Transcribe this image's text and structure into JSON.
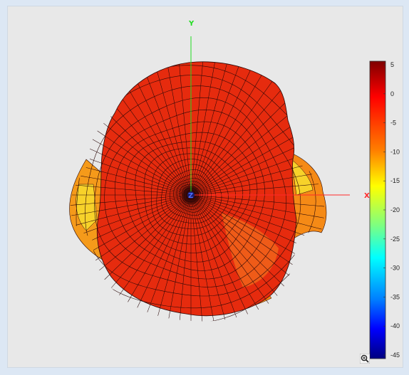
{
  "viewer": {
    "axes": {
      "x_label": "X",
      "y_label": "Y",
      "z_label": "Z",
      "x_color": "#ff2a2a",
      "y_color": "#22dd22",
      "z_color": "#2a3cff"
    },
    "colorbar": {
      "ticks": [
        "5",
        "0",
        "-5",
        "-10",
        "-15",
        "-20",
        "-25",
        "-30",
        "-35",
        "-40",
        "-45"
      ],
      "max": 5,
      "min": -45
    },
    "surface_colors": {
      "main": "#e62b0e",
      "orange": "#f57a12",
      "yellow": "#f7c81e",
      "mesh": "#2a0808"
    },
    "zoom_icon": "zoom-magnifier-icon"
  }
}
